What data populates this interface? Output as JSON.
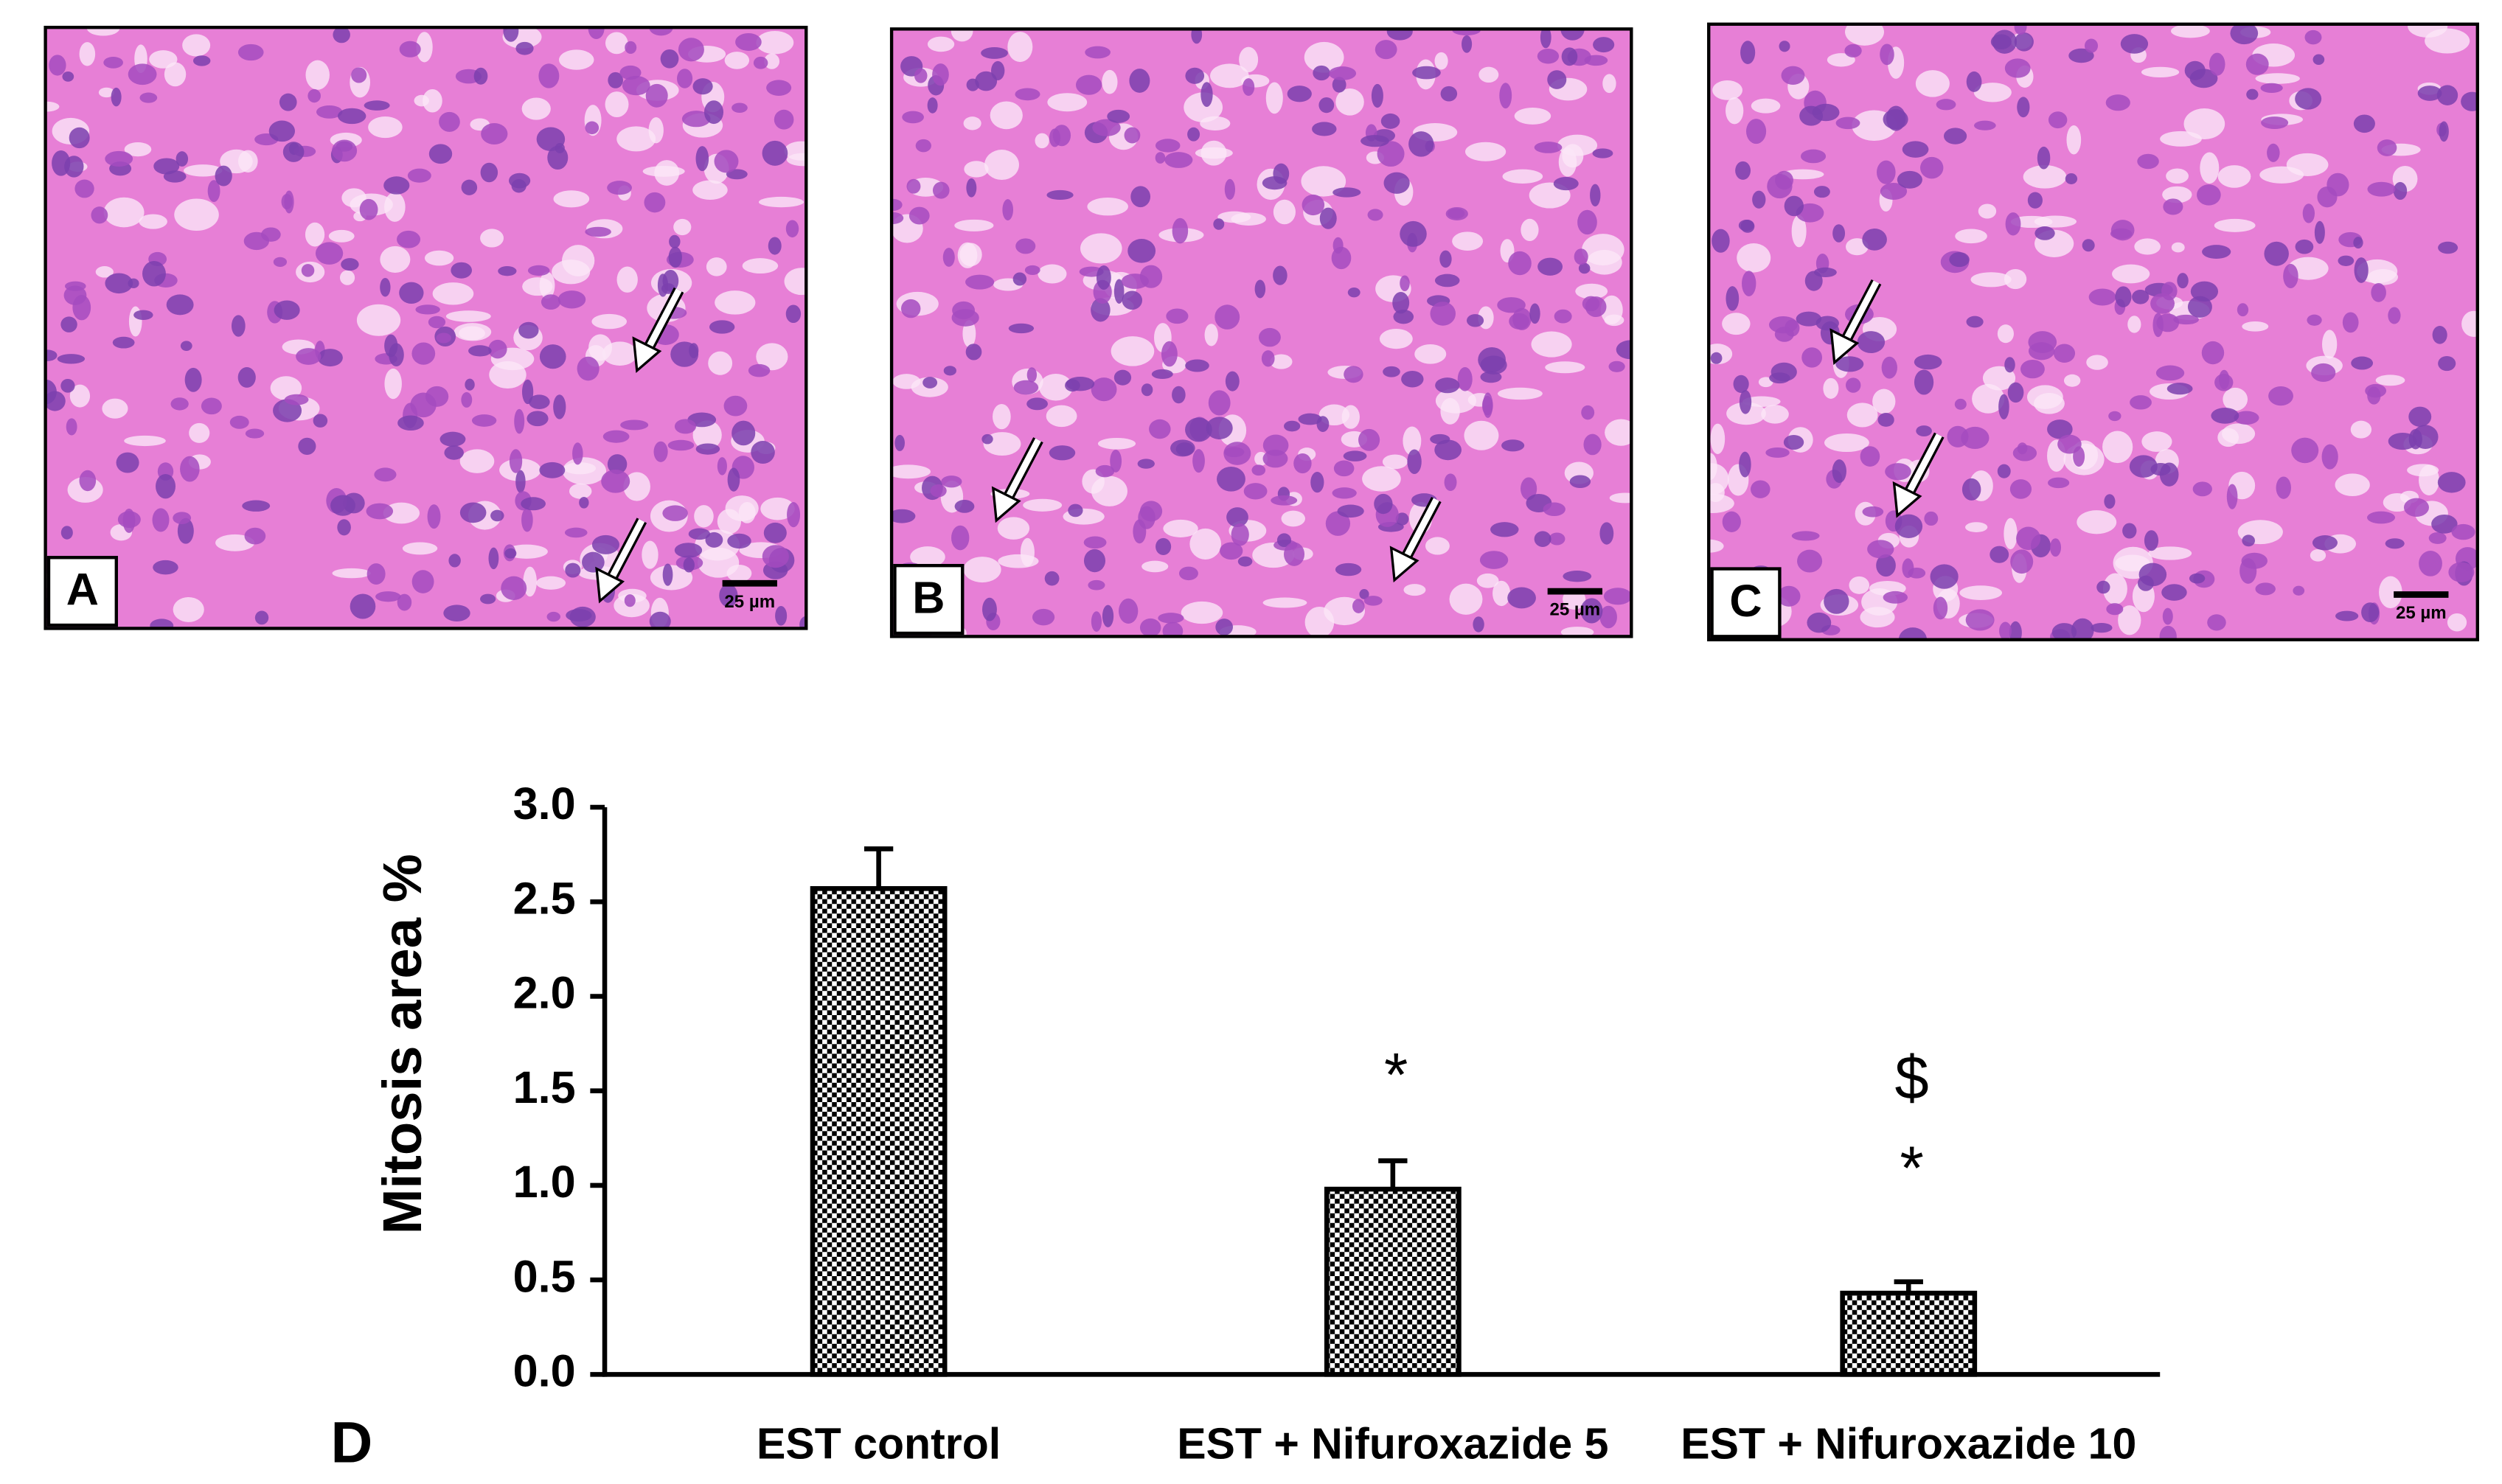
{
  "figure": {
    "panels": [
      {
        "label": "A",
        "scale": "25 µm"
      },
      {
        "label": "B",
        "scale": "25 µm"
      },
      {
        "label": "C",
        "scale": "25 µm"
      }
    ]
  },
  "chart_data": {
    "type": "bar",
    "panel_label": "D",
    "ylabel": "Mitosis area %",
    "categories": [
      "EST control",
      "EST + Nifuroxazide 5",
      "EST + Nifuroxazide 10"
    ],
    "values": [
      2.57,
      0.98,
      0.43
    ],
    "errors": [
      0.21,
      0.15,
      0.06
    ],
    "annotations": [
      "*",
      "$",
      "*"
    ],
    "color": "#000000",
    "pattern": "checkerboard",
    "ylim": [
      0,
      3
    ],
    "yticks": [
      {
        "value": 0,
        "label": "0.0"
      },
      0.5,
      {
        "value": 1,
        "label": "1.0"
      },
      1.5,
      {
        "value": 2,
        "label": "2.0"
      },
      2.5,
      {
        "value": 3,
        "label": "3.0"
      }
    ]
  }
}
